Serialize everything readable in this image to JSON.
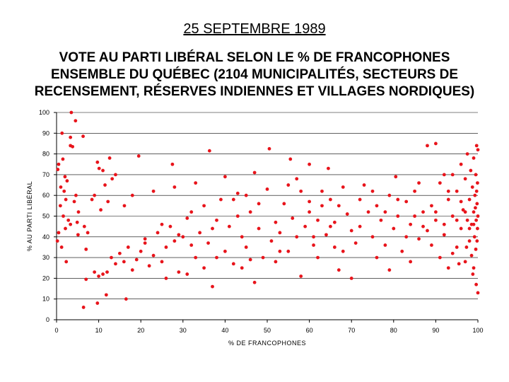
{
  "heading": "25 SEPTEMBRE 1989",
  "chart_data": {
    "type": "scatter",
    "title_lines": [
      "VOTE AU PARTI LIBÉRAL SELON LE % DE FRANCOPHONES",
      "ENSEMBLE DU QUÉBEC (2104 MUNICIPALITÉS, SECTEURS DE",
      "RECENSEMENT, RÉSERVES INDIENNES ET VILLAGES NORDIQUES)"
    ],
    "xlabel": "% DE FRANCOPHONES",
    "ylabel": "% AU PARTI LIBÉRAL",
    "xlim": [
      0,
      100
    ],
    "ylim": [
      0,
      100
    ],
    "x_ticks": [
      0,
      10,
      20,
      30,
      40,
      50,
      60,
      70,
      80,
      90,
      100
    ],
    "y_ticks": [
      0,
      10,
      20,
      30,
      40,
      50,
      60,
      70,
      80,
      90,
      100
    ],
    "grid": "horizontal",
    "marker_color": "#e8141b",
    "points": [
      [
        3.5,
        100
      ],
      [
        4.5,
        96
      ],
      [
        1.3,
        90
      ],
      [
        3.3,
        88
      ],
      [
        6.3,
        88.5
      ],
      [
        3.3,
        84
      ],
      [
        3.8,
        83.5
      ],
      [
        0.5,
        75
      ],
      [
        0.3,
        72.5
      ],
      [
        1.5,
        77.5
      ],
      [
        2,
        69
      ],
      [
        2.5,
        67
      ],
      [
        1,
        64
      ],
      [
        1.8,
        62
      ],
      [
        2.2,
        58
      ],
      [
        0.9,
        55
      ],
      [
        2.8,
        48
      ],
      [
        1.6,
        50
      ],
      [
        3.3,
        46
      ],
      [
        2.1,
        44
      ],
      [
        0.5,
        42
      ],
      [
        0.2,
        38
      ],
      [
        1.2,
        35
      ],
      [
        2.3,
        28
      ],
      [
        4.6,
        60
      ],
      [
        4.2,
        57
      ],
      [
        5.2,
        52
      ],
      [
        4.9,
        47
      ],
      [
        6.6,
        45
      ],
      [
        7.4,
        42
      ],
      [
        7,
        34
      ],
      [
        5.1,
        41
      ],
      [
        9.7,
        76
      ],
      [
        10.1,
        73
      ],
      [
        11,
        72
      ],
      [
        11.5,
        65
      ],
      [
        12.2,
        57
      ],
      [
        12.6,
        78
      ],
      [
        14,
        70
      ],
      [
        9,
        60
      ],
      [
        8.4,
        58
      ],
      [
        10.5,
        53
      ],
      [
        13.2,
        68
      ],
      [
        16.1,
        55
      ],
      [
        6.4,
        6
      ],
      [
        9.7,
        8
      ],
      [
        11.8,
        12
      ],
      [
        16.5,
        10
      ],
      [
        7,
        19.5
      ],
      [
        9,
        23
      ],
      [
        10,
        21
      ],
      [
        11,
        22
      ],
      [
        12,
        23
      ],
      [
        13,
        30
      ],
      [
        14,
        27
      ],
      [
        15,
        32
      ],
      [
        16,
        28
      ],
      [
        17,
        35
      ],
      [
        18,
        24
      ],
      [
        19,
        29
      ],
      [
        20,
        33
      ],
      [
        21,
        37
      ],
      [
        22,
        26
      ],
      [
        23,
        31
      ],
      [
        24,
        42
      ],
      [
        25,
        28
      ],
      [
        26,
        35
      ],
      [
        27,
        45
      ],
      [
        28,
        38
      ],
      [
        29,
        23
      ],
      [
        30,
        40
      ],
      [
        31,
        49
      ],
      [
        32,
        36
      ],
      [
        33,
        30
      ],
      [
        34,
        42
      ],
      [
        35,
        55
      ],
      [
        36,
        37
      ],
      [
        37,
        16
      ],
      [
        38,
        48
      ],
      [
        39,
        58
      ],
      [
        40,
        33
      ],
      [
        41,
        45
      ],
      [
        42,
        27
      ],
      [
        43,
        61
      ],
      [
        44,
        40
      ],
      [
        45,
        35
      ],
      [
        46,
        52
      ],
      [
        47,
        18
      ],
      [
        48,
        44
      ],
      [
        49,
        30
      ],
      [
        50,
        63
      ],
      [
        51,
        38
      ],
      [
        52,
        47
      ],
      [
        53,
        42
      ],
      [
        54,
        56
      ],
      [
        55,
        33
      ],
      [
        56,
        49
      ],
      [
        57,
        40
      ],
      [
        58,
        62
      ],
      [
        59,
        45
      ],
      [
        60,
        52
      ],
      [
        61,
        36
      ],
      [
        62,
        48
      ],
      [
        63,
        55
      ],
      [
        64,
        41
      ],
      [
        65,
        58
      ],
      [
        66,
        47
      ],
      [
        67,
        24
      ],
      [
        68,
        64
      ],
      [
        69,
        51
      ],
      [
        70,
        43
      ],
      [
        19.5,
        79
      ],
      [
        27.5,
        75
      ],
      [
        36.3,
        81.5
      ],
      [
        50.5,
        82.5
      ],
      [
        55.5,
        77.5
      ],
      [
        60,
        75
      ],
      [
        64.5,
        73
      ],
      [
        57,
        68
      ],
      [
        47,
        71
      ],
      [
        40,
        69
      ],
      [
        33,
        66
      ],
      [
        28,
        64
      ],
      [
        23,
        62
      ],
      [
        18,
        60
      ],
      [
        42,
        58
      ],
      [
        45,
        60
      ],
      [
        55,
        65
      ],
      [
        38,
        30
      ],
      [
        44,
        25
      ],
      [
        52,
        28
      ],
      [
        58,
        21
      ],
      [
        62,
        30
      ],
      [
        66,
        35
      ],
      [
        70,
        20
      ],
      [
        72,
        45
      ],
      [
        74,
        52
      ],
      [
        75,
        40
      ],
      [
        76,
        55
      ],
      [
        77,
        48
      ],
      [
        78,
        36
      ],
      [
        79,
        60
      ],
      [
        80,
        44
      ],
      [
        80.5,
        69
      ],
      [
        81,
        50
      ],
      [
        82,
        33
      ],
      [
        83,
        57
      ],
      [
        84,
        46
      ],
      [
        85,
        62
      ],
      [
        86,
        39
      ],
      [
        87,
        52
      ],
      [
        88,
        43
      ],
      [
        88,
        84
      ],
      [
        90,
        85
      ],
      [
        89,
        55
      ],
      [
        90,
        48
      ],
      [
        91,
        66
      ],
      [
        91,
        30
      ],
      [
        92,
        41
      ],
      [
        93,
        58
      ],
      [
        93,
        25
      ],
      [
        94,
        50
      ],
      [
        94,
        70
      ],
      [
        95,
        35
      ],
      [
        95,
        62
      ],
      [
        96,
        44
      ],
      [
        96,
        75
      ],
      [
        96.5,
        53
      ],
      [
        97,
        28
      ],
      [
        97,
        68
      ],
      [
        97.5,
        48
      ],
      [
        97.5,
        80
      ],
      [
        98,
        38
      ],
      [
        98,
        58
      ],
      [
        98.3,
        72
      ],
      [
        98.5,
        31
      ],
      [
        98.5,
        46
      ],
      [
        98.7,
        64
      ],
      [
        99,
        25
      ],
      [
        99,
        52
      ],
      [
        99,
        78
      ],
      [
        99.2,
        40
      ],
      [
        99.3,
        60
      ],
      [
        99.5,
        34
      ],
      [
        99.5,
        70
      ],
      [
        99.6,
        48
      ],
      [
        99.7,
        84
      ],
      [
        99.8,
        56
      ],
      [
        99.9,
        44
      ],
      [
        99.9,
        66
      ],
      [
        100,
        50
      ],
      [
        100,
        13
      ],
      [
        99.6,
        17
      ],
      [
        100,
        82
      ],
      [
        73,
        65
      ],
      [
        71,
        37
      ],
      [
        76,
        30
      ],
      [
        79,
        24
      ],
      [
        84,
        28
      ],
      [
        86,
        66
      ],
      [
        89,
        36
      ],
      [
        92,
        70
      ],
      [
        94,
        32
      ],
      [
        95.5,
        27
      ],
      [
        97.3,
        35
      ],
      [
        98.8,
        22
      ],
      [
        26,
        20
      ],
      [
        31,
        22
      ],
      [
        35,
        25
      ],
      [
        46,
        29
      ],
      [
        53,
        33
      ],
      [
        61,
        40
      ],
      [
        65,
        45
      ],
      [
        68,
        33
      ],
      [
        48,
        56
      ],
      [
        43,
        50
      ],
      [
        37,
        44
      ],
      [
        32,
        52
      ],
      [
        29,
        41
      ],
      [
        25,
        46
      ],
      [
        21,
        39
      ],
      [
        60,
        57
      ],
      [
        63,
        62
      ],
      [
        67,
        55
      ],
      [
        72,
        58
      ],
      [
        75,
        62
      ],
      [
        78,
        52
      ],
      [
        81,
        58
      ],
      [
        83,
        40
      ],
      [
        85,
        50
      ],
      [
        87,
        45
      ],
      [
        90,
        52
      ],
      [
        92,
        46
      ],
      [
        93,
        62
      ],
      [
        95,
        48
      ],
      [
        96,
        57
      ],
      [
        97,
        52
      ],
      [
        98,
        44
      ],
      [
        99,
        46
      ],
      [
        99.4,
        54
      ],
      [
        99.8,
        38
      ],
      [
        99.7,
        62
      ]
    ]
  }
}
